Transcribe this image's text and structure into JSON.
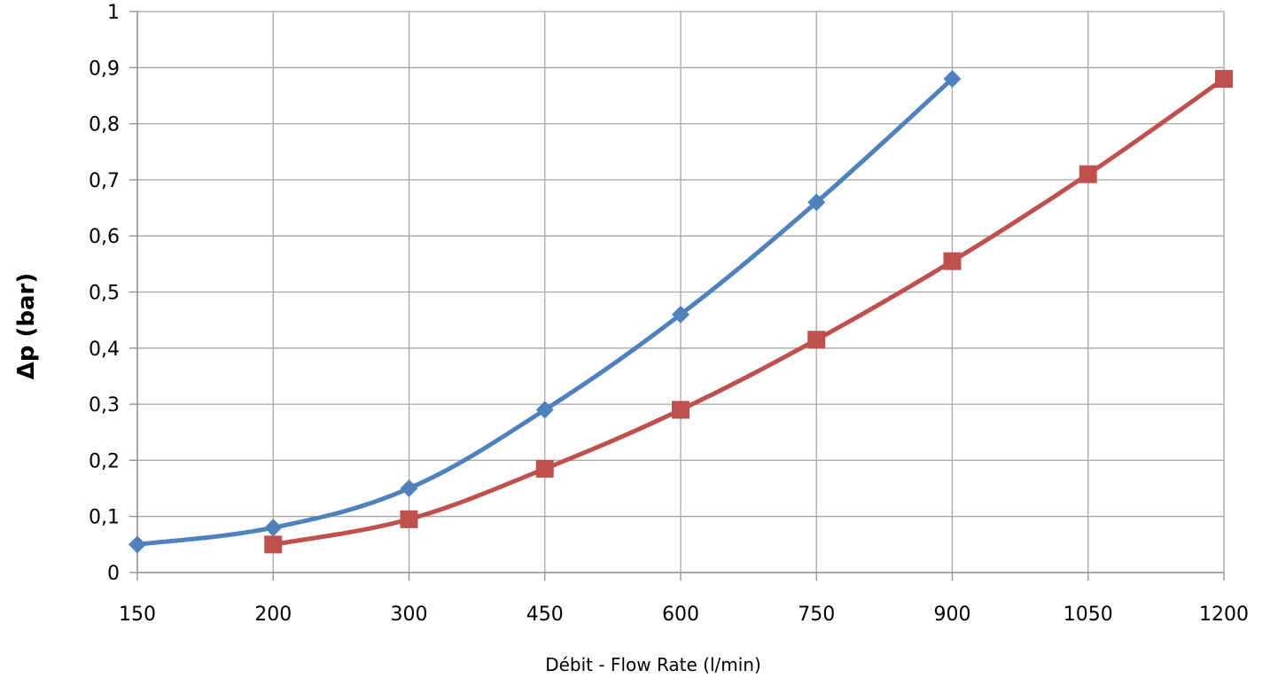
{
  "chart_data": {
    "type": "line",
    "title": "",
    "xlabel": "Débit - Flow Rate (l/min)",
    "ylabel": "Δp (bar)",
    "categories": [
      "150",
      "200",
      "300",
      "450",
      "600",
      "750",
      "900",
      "1050",
      "1200"
    ],
    "y_ticks": [
      "0",
      "0,1",
      "0,2",
      "0,3",
      "0,4",
      "0,5",
      "0,6",
      "0,7",
      "0,8",
      "0,9",
      "1"
    ],
    "ylim": [
      0,
      1
    ],
    "grid": true,
    "legend": "none",
    "series": [
      {
        "color": "#4f81bd",
        "marker": "diamond",
        "values": [
          0.05,
          0.08,
          0.15,
          0.29,
          0.46,
          0.66,
          0.88,
          null,
          null
        ]
      },
      {
        "color": "#c0504d",
        "marker": "square",
        "values": [
          null,
          0.05,
          0.095,
          0.185,
          0.29,
          0.415,
          0.555,
          0.71,
          0.88
        ]
      }
    ]
  }
}
